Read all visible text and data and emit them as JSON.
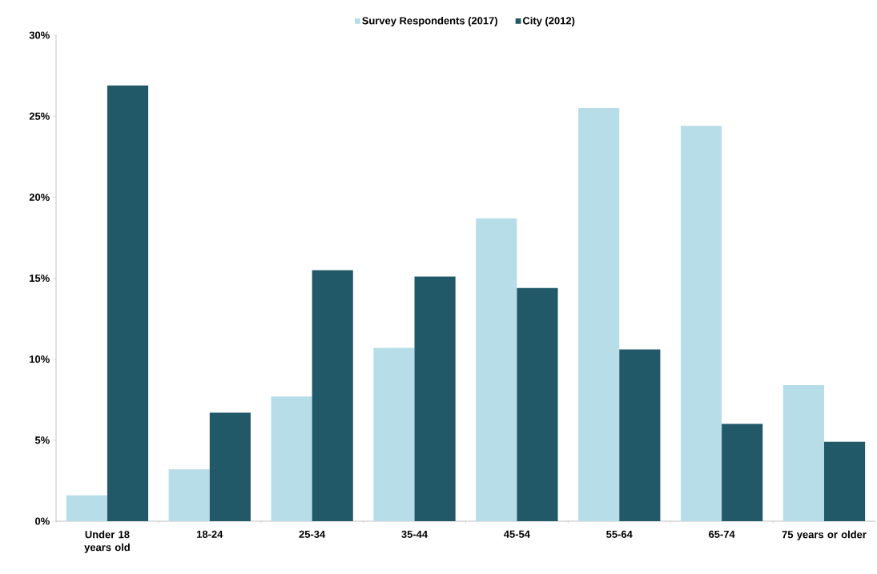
{
  "chart_data": {
    "type": "bar",
    "categories": [
      "Under 18 years old",
      "18-24",
      "25-34",
      "35-44",
      "45-54",
      "55-64",
      "65-74",
      "75 years or older"
    ],
    "series": [
      {
        "name": "Survey Respondents (2017)",
        "color": "#b7dde8",
        "values": [
          1.6,
          3.2,
          7.7,
          10.7,
          18.7,
          25.5,
          24.4,
          8.4
        ]
      },
      {
        "name": "City (2012)",
        "color": "#215968",
        "values": [
          26.9,
          6.7,
          15.5,
          15.1,
          14.4,
          10.6,
          6.0,
          4.9
        ]
      }
    ],
    "ylim": [
      0,
      30
    ],
    "yticks": [
      {
        "value": 0,
        "label": "0%"
      },
      {
        "value": 5,
        "label": "5%"
      },
      {
        "value": 10,
        "label": "10%"
      },
      {
        "value": 15,
        "label": "15%"
      },
      {
        "value": 20,
        "label": "20%"
      },
      {
        "value": 25,
        "label": "25%"
      },
      {
        "value": 30,
        "label": "30%"
      }
    ],
    "grid": false,
    "legend": "top"
  }
}
